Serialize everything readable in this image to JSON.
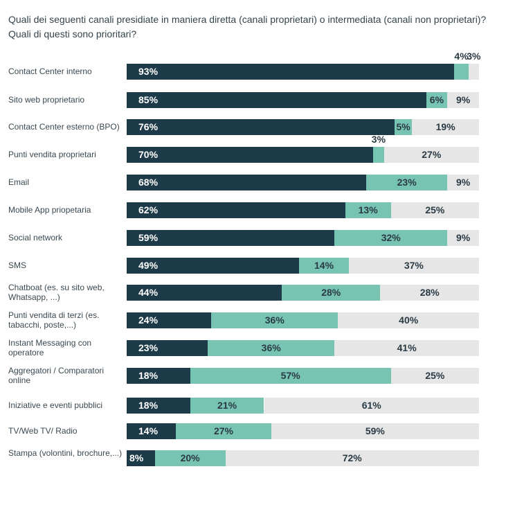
{
  "chart_data": {
    "type": "bar",
    "orientation": "horizontal",
    "stacked": true,
    "title": "Quali dei seguenti canali presidiate in maniera diretta (canali proprietari) o intermediata (canali non proprietari)? Quali di questi sono prioritari?",
    "xlim": [
      0,
      100
    ],
    "grid": false,
    "colors": [
      "#1d3a48",
      "#78c4b2",
      "#e6e6e6"
    ],
    "categories": [
      "Contact Center interno",
      "Sito web proprietario",
      "Contact Center esterno (BPO)",
      "Punti vendita proprietari",
      "Email",
      "Mobile App priopetaria",
      "Social network",
      "SMS",
      "Chatboat (es. su sito web, Whatsapp, ...)",
      "Punti vendita di terzi (es. tabacchi, poste,...)",
      "Instant Messaging con operatore",
      "Aggregatori / Comparatori online",
      "Iniziative e eventi pubblici",
      "TV/Web TV/ Radio",
      "Stampa (volontini, brochure,...)"
    ],
    "series": [
      {
        "values": [
          93,
          85,
          76,
          70,
          68,
          62,
          59,
          49,
          44,
          24,
          23,
          18,
          18,
          14,
          8
        ]
      },
      {
        "values": [
          4,
          6,
          5,
          3,
          23,
          13,
          32,
          14,
          28,
          36,
          36,
          57,
          21,
          27,
          20
        ]
      },
      {
        "values": [
          3,
          9,
          19,
          27,
          9,
          25,
          9,
          37,
          28,
          40,
          41,
          25,
          61,
          59,
          72
        ]
      }
    ],
    "value_format": "%"
  }
}
